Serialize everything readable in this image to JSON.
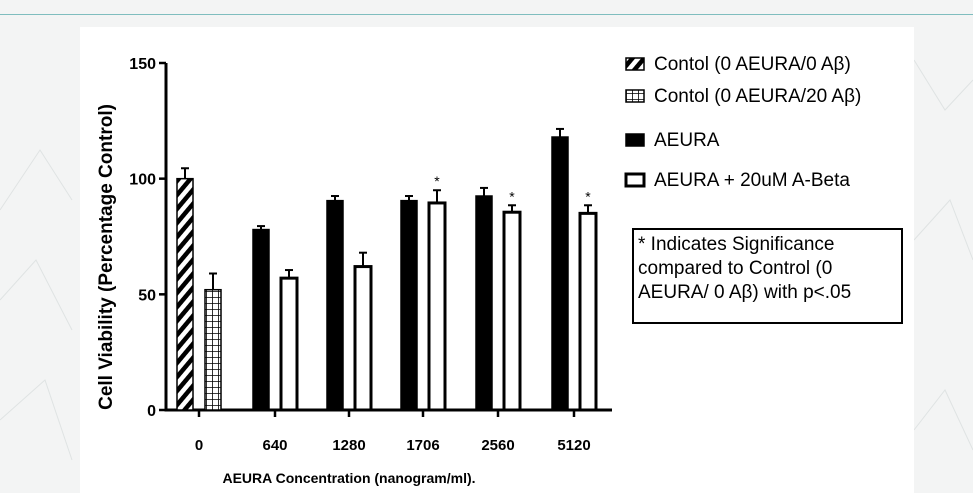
{
  "chart_data": {
    "type": "bar",
    "categories": [
      "0",
      "640",
      "1280",
      "1706",
      "2560",
      "5120"
    ],
    "series": [
      {
        "name": "Contol (0 AEURA/0 Aβ)",
        "pattern": "hatch",
        "values": [
          100,
          null,
          null,
          null,
          null,
          null
        ],
        "errors": [
          4.5,
          null,
          null,
          null,
          null,
          null
        ],
        "stars": [
          false,
          false,
          false,
          false,
          false,
          false
        ]
      },
      {
        "name": "Contol (0 AEURA/20 Aβ)",
        "pattern": "grid",
        "values": [
          52,
          null,
          null,
          null,
          null,
          null
        ],
        "errors": [
          7,
          null,
          null,
          null,
          null,
          null
        ],
        "stars": [
          false,
          false,
          false,
          false,
          false,
          false
        ]
      },
      {
        "name": "AEURA",
        "pattern": "solid",
        "values": [
          null,
          78,
          90.5,
          90.5,
          92.5,
          118
        ],
        "errors": [
          null,
          1.5,
          2,
          2,
          3.5,
          3.5
        ],
        "stars": [
          false,
          false,
          false,
          false,
          false,
          false
        ]
      },
      {
        "name": "AEURA + 20uM A-Beta",
        "pattern": "open",
        "values": [
          null,
          57,
          62,
          89.5,
          85.5,
          85
        ],
        "errors": [
          null,
          3.5,
          6,
          5.5,
          3,
          3.5
        ],
        "stars": [
          false,
          false,
          false,
          true,
          true,
          true
        ]
      }
    ],
    "ylabel": "Cell Viability (Percentage Control)",
    "xlabel": "AEURA Concentration (nanogram/ml).",
    "ylim": [
      0,
      150
    ],
    "yticks": [
      "0",
      "50",
      "100",
      "150"
    ],
    "star_label": "*",
    "legend_position": "top-right",
    "annotation": "* Indicates Significance\ncompared to Control (0\nAEURA/ 0 Aβ) with p<.05",
    "colors": {
      "bar": "#000000",
      "open_fill": "#ffffff",
      "page_bg": "#f3f4f4",
      "accent_rule": "#7fbdbe"
    }
  }
}
